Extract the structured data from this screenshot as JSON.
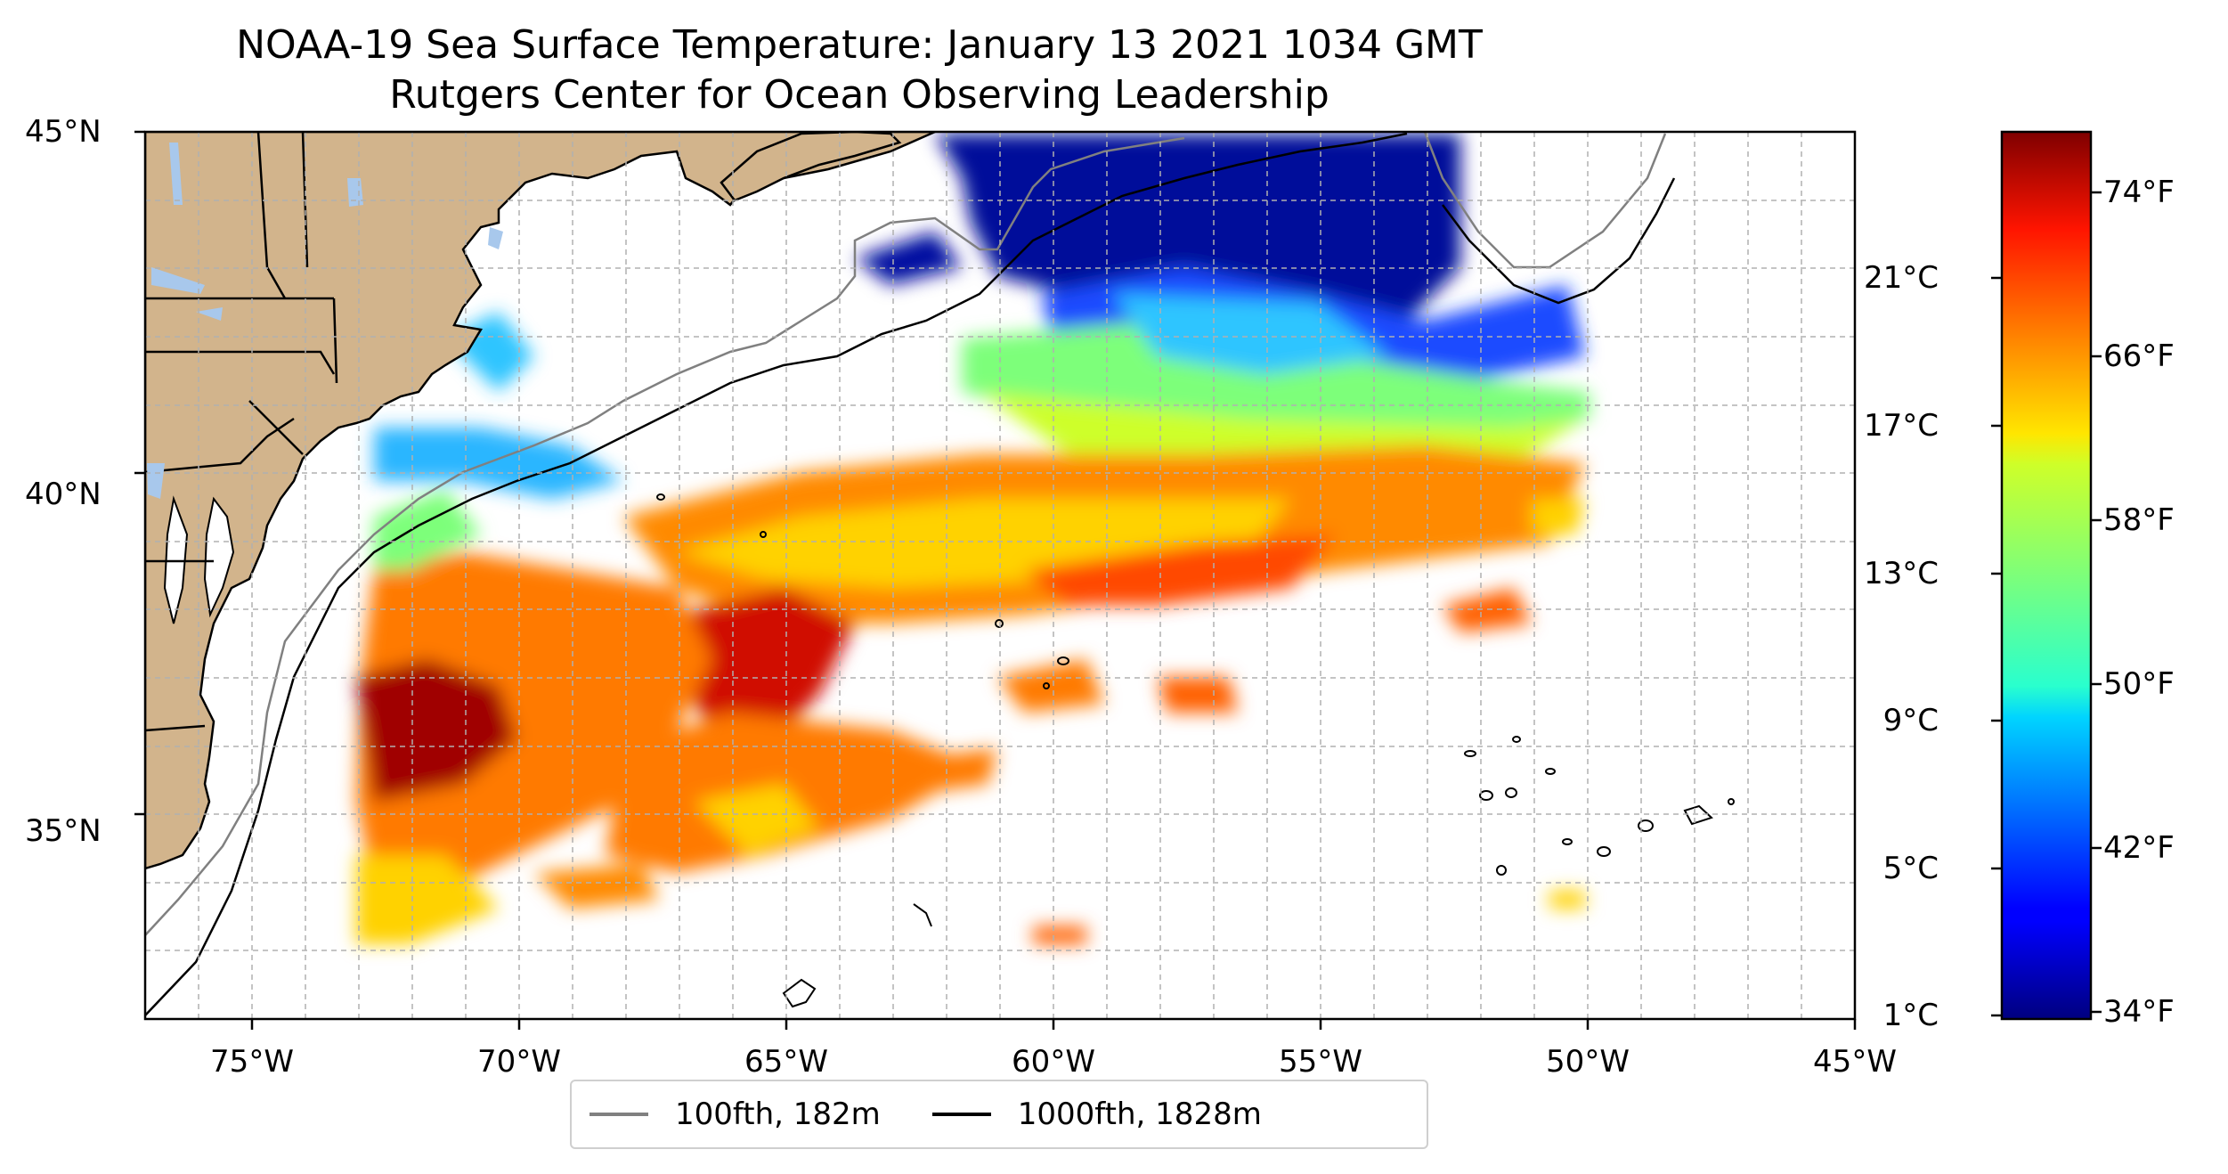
{
  "title": "NOAA-19 Sea Surface Temperature: January 13 2021 1034 GMT",
  "subtitle": "Rutgers Center for Ocean Observing Leadership",
  "lat_labels": [
    "45°N",
    "40°N",
    "35°N"
  ],
  "lon_labels": [
    "75°W",
    "70°W",
    "65°W",
    "60°W",
    "55°W",
    "50°W",
    "45°W"
  ],
  "colorbar": {
    "celsius_labels": [
      "21°C",
      "17°C",
      "13°C",
      "9°C",
      "5°C",
      "1°C"
    ],
    "fahrenheit_labels": [
      "74°F",
      "66°F",
      "58°F",
      "50°F",
      "42°F",
      "34°F"
    ],
    "colormap": "jet",
    "range_f": [
      33.8,
      77
    ]
  },
  "legend": [
    {
      "label": "100fth, 182m",
      "color": "#808080"
    },
    {
      "label": "1000fth, 1828m",
      "color": "#000000"
    }
  ],
  "colors": {
    "land": "#d2b48c",
    "lakes": "#a8c8ec",
    "grid": "#b0b0b0"
  },
  "map_extent": {
    "lon": [
      -77,
      -45
    ],
    "lat": [
      32,
      45
    ]
  }
}
